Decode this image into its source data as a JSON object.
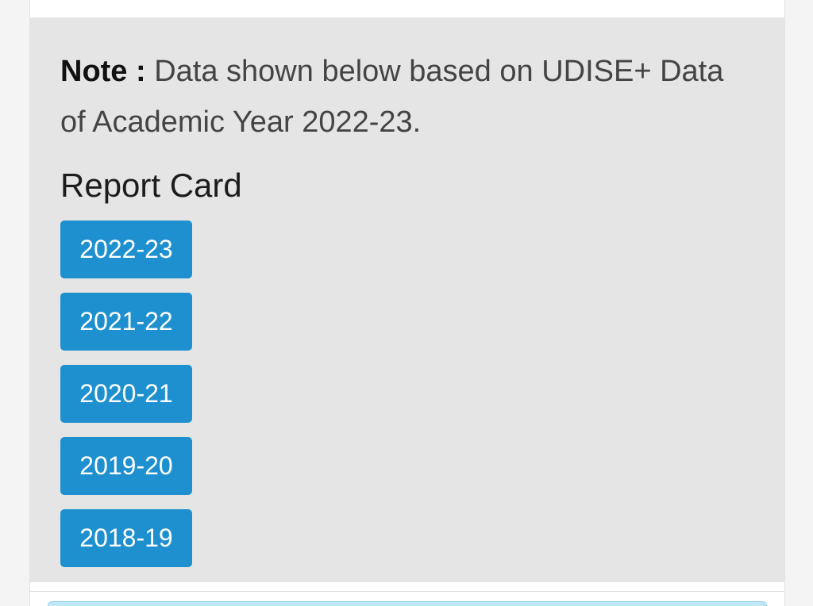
{
  "note": {
    "label": "Note :",
    "text": " Data shown below based on UDISE+ Data of Academic Year 2022-23."
  },
  "report_card": {
    "title": "Report Card",
    "years": [
      {
        "label": "2022-23"
      },
      {
        "label": "2021-22"
      },
      {
        "label": "2020-21"
      },
      {
        "label": "2019-20"
      },
      {
        "label": "2018-19"
      }
    ]
  },
  "colors": {
    "button": "#1e90d0",
    "panel": "#e5e5e5",
    "next_bar": "#bfe7f6"
  }
}
